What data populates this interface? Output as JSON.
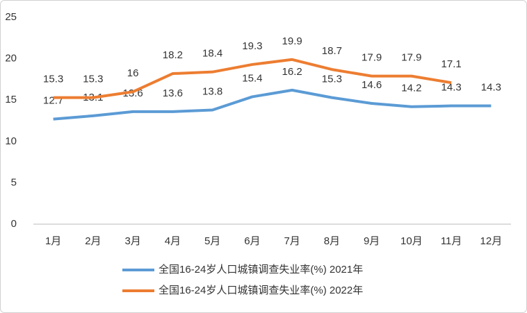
{
  "chart_data": {
    "type": "line",
    "categories": [
      "1月",
      "2月",
      "3月",
      "4月",
      "5月",
      "6月",
      "7月",
      "8月",
      "9月",
      "10月",
      "11月",
      "12月"
    ],
    "series": [
      {
        "name": "全国16-24岁人口城镇调查失业率(%) 2021年",
        "color": "#5b9bd5",
        "values": [
          12.7,
          13.1,
          13.6,
          13.6,
          13.8,
          15.4,
          16.2,
          15.3,
          14.6,
          14.2,
          14.3,
          14.3
        ]
      },
      {
        "name": "全国16-24岁人口城镇调查失业率(%) 2022年",
        "color": "#ed7d31",
        "values": [
          15.3,
          15.3,
          16,
          18.2,
          18.4,
          19.3,
          19.9,
          18.7,
          17.9,
          17.9,
          17.1,
          null
        ]
      }
    ],
    "ylim": [
      0,
      25
    ],
    "yticks": [
      0,
      5,
      10,
      15,
      20,
      25
    ],
    "grid": false,
    "legend": "bottom"
  }
}
